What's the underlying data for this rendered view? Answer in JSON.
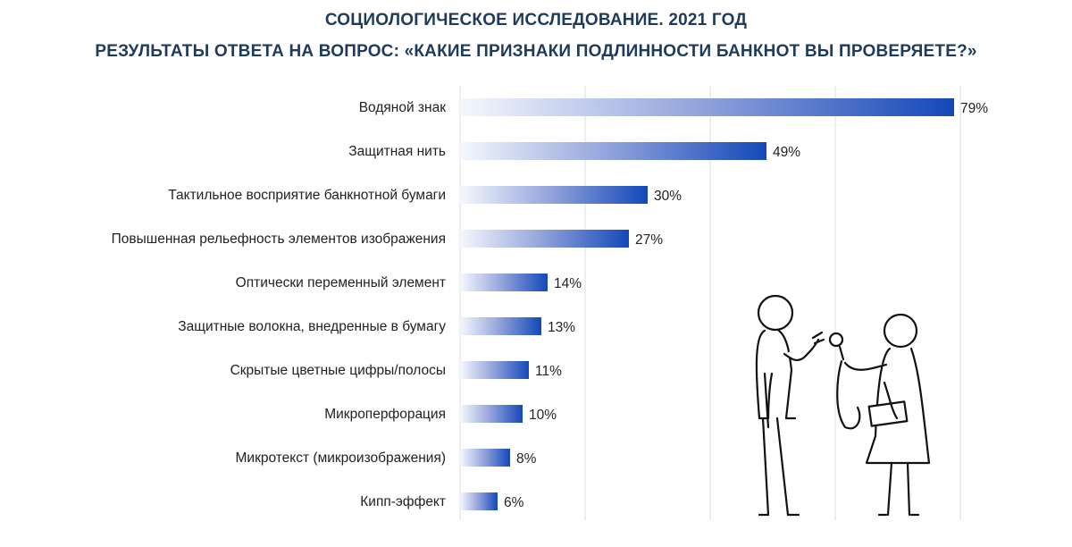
{
  "title_line1": "СОЦИОЛОГИЧЕСКОЕ ИССЛЕДОВАНИЕ. 2021 ГОД",
  "title_line2": "РЕЗУЛЬТАТЫ ОТВЕТА НА ВОПРОС: «КАКИЕ ПРИЗНАКИ ПОДЛИННОСТИ БАНКНОТ ВЫ ПРОВЕРЯЕТЕ?»",
  "colors": {
    "title": "#1f3b5c",
    "bar_start": "#f4f8fd",
    "bar_mid": "#9aa9de",
    "bar_end": "#1448b8",
    "grid": "#dcdcdc"
  },
  "illustration": {
    "icon": "interview-illustration"
  },
  "chart_data": {
    "type": "bar",
    "orientation": "horizontal",
    "title": "СОЦИОЛОГИЧЕСКОЕ ИССЛЕДОВАНИЕ. 2021 ГОД",
    "subtitle": "РЕЗУЛЬТАТЫ ОТВЕТА НА ВОПРОС: «КАКИЕ ПРИЗНАКИ ПОДЛИННОСТИ БАНКНОТ ВЫ ПРОВЕРЯЕТЕ?»",
    "categories": [
      "Водяной знак",
      "Защитная нить",
      "Тактильное восприятие банкнотной бумаги",
      "Повышенная рельефность элементов изображения",
      "Оптически переменный элемент",
      "Защитные волокна, внедренные в бумагу",
      "Скрытые цветные цифры/полосы",
      "Микроперфорация",
      "Микротекст (микроизображения)",
      "Кипп-эффект"
    ],
    "values": [
      79,
      49,
      30,
      27,
      14,
      13,
      11,
      10,
      8,
      6
    ],
    "value_labels": [
      "79%",
      "49%",
      "30%",
      "27%",
      "14%",
      "13%",
      "11%",
      "10%",
      "8%",
      "6%"
    ],
    "unit": "%",
    "xlim": [
      0,
      100
    ],
    "grid": true,
    "legend": false
  }
}
